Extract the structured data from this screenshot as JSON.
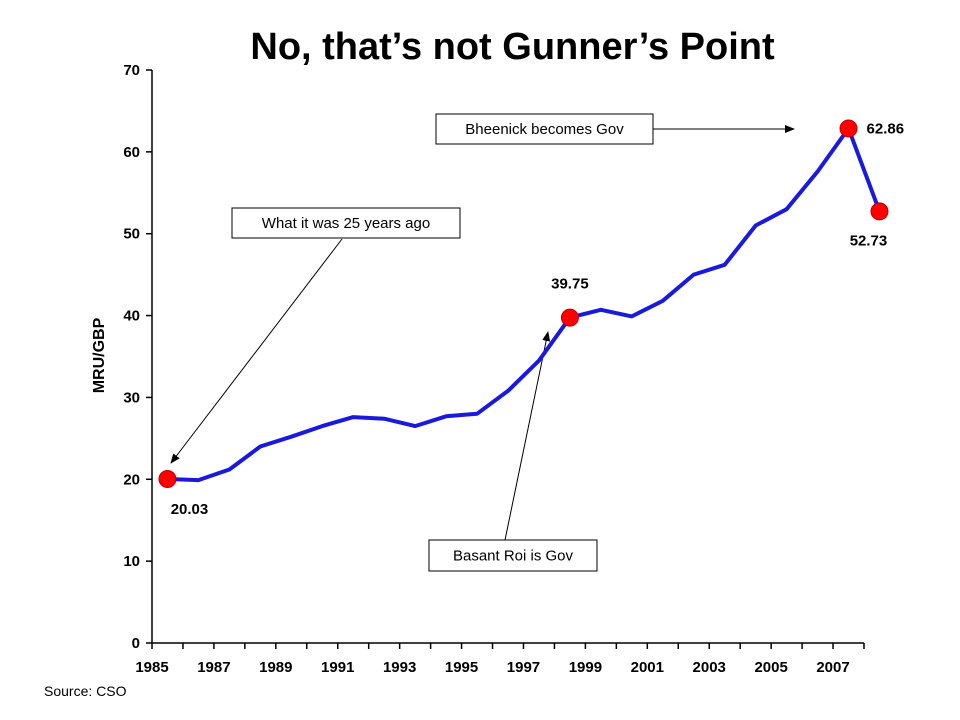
{
  "title": "No, that’s not Gunner’s Point",
  "source": "Source: CSO",
  "colors": {
    "line": "#1a1adf",
    "marker": "#ff0000",
    "axis": "#000000"
  },
  "chart_data": {
    "type": "line",
    "ylabel": "MRU/GBP",
    "xlabel": "",
    "ylim": [
      0,
      70
    ],
    "yticks": [
      0,
      10,
      20,
      30,
      40,
      50,
      60,
      70
    ],
    "xlim": [
      1985,
      2008
    ],
    "xticks": [
      "1985",
      "1987",
      "1989",
      "1991",
      "1993",
      "1995",
      "1997",
      "1999",
      "2001",
      "2003",
      "2005",
      "2007"
    ],
    "grid": false,
    "series": [
      {
        "x": [
          1985.5,
          1986.5,
          1987.5,
          1988.5,
          1989.5,
          1990.5,
          1991.5,
          1992.5,
          1993.5,
          1994.5,
          1995.5,
          1996.5,
          1997.5,
          1998.5,
          1999.5,
          2000.5,
          2001.5,
          2002.5,
          2003.5,
          2004.5,
          2005.5,
          2006.5,
          2007.5,
          2008.5
        ],
        "values": [
          20.03,
          19.9,
          21.2,
          24.0,
          25.2,
          26.5,
          27.6,
          27.4,
          26.5,
          27.7,
          28.0,
          30.8,
          34.5,
          39.75,
          40.7,
          39.9,
          41.8,
          45.0,
          46.2,
          51.0,
          53.0,
          57.6,
          62.86,
          52.73
        ]
      }
    ],
    "highlights": [
      {
        "x": 1985.5,
        "value": 20.03,
        "label": "20.03"
      },
      {
        "x": 1998.5,
        "value": 39.75,
        "label": "39.75"
      },
      {
        "x": 2007.5,
        "value": 62.86,
        "label": "62.86"
      },
      {
        "x": 2008.5,
        "value": 52.73,
        "label": "52.73"
      }
    ],
    "annotations": [
      {
        "text": "What it was 25 years ago",
        "target_x": 1985.5,
        "target_value": 20.03
      },
      {
        "text": "Basant Roi is Gov",
        "target_x": 1998.5,
        "target_value": 39.75
      },
      {
        "text": "Bheenick becomes Gov",
        "target_x": 2007.5,
        "target_value": 62.86
      }
    ]
  }
}
